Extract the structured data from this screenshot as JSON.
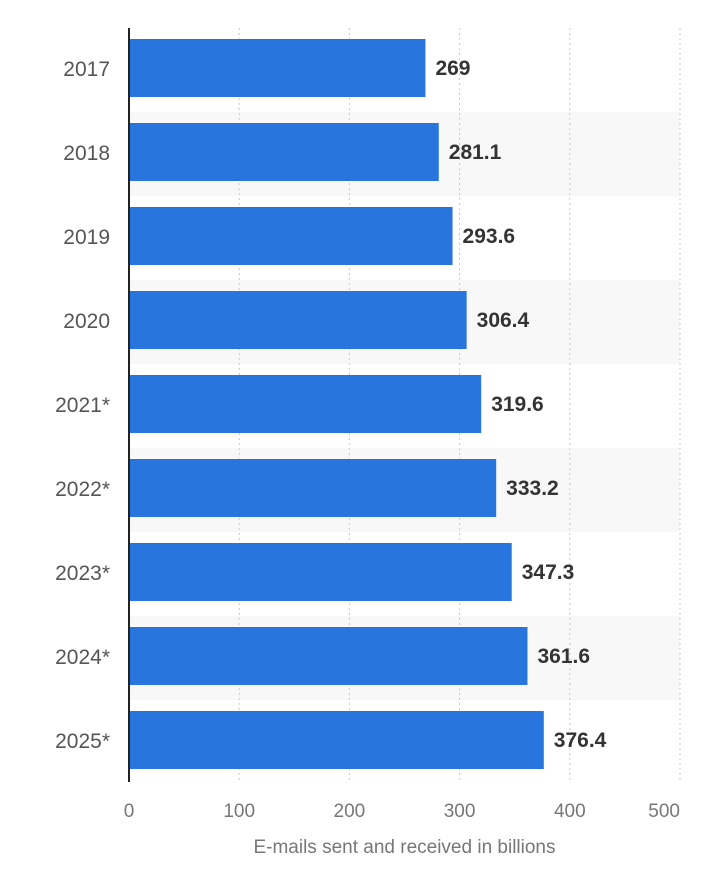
{
  "chart_data": {
    "type": "bar",
    "orientation": "horizontal",
    "categories": [
      "2017",
      "2018",
      "2019",
      "2020",
      "2021*",
      "2022*",
      "2023*",
      "2024*",
      "2025*"
    ],
    "values": [
      269,
      281.1,
      293.6,
      306.4,
      319.6,
      333.2,
      347.3,
      361.6,
      376.4
    ],
    "value_labels": [
      "269",
      "281.1",
      "293.6",
      "306.4",
      "319.6",
      "333.2",
      "347.3",
      "361.6",
      "376.4"
    ],
    "x_ticks": [
      "0",
      "100",
      "200",
      "300",
      "400",
      "500"
    ],
    "xlim": [
      0,
      500
    ],
    "xlabel": "E-mails sent and received in billions",
    "ylabel": "",
    "title": "",
    "grid": "vertical dashed",
    "bar_color": "#2876DD",
    "band_color": "#F8F8F8"
  }
}
